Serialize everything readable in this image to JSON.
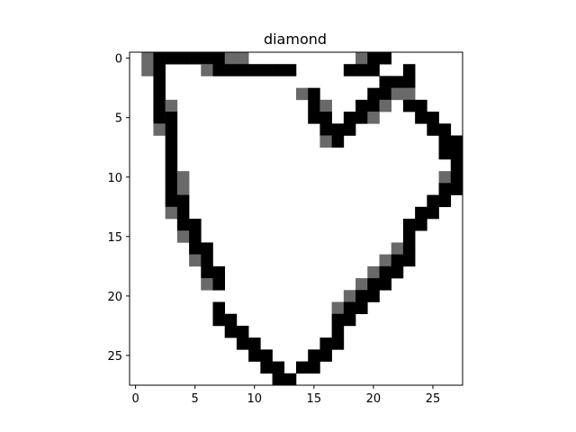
{
  "chart_data": {
    "type": "heatmap",
    "title": "diamond",
    "xlabel": "",
    "ylabel": "",
    "grid": false,
    "xlim": [
      -0.5,
      27.5
    ],
    "ylim": [
      27.5,
      -0.5
    ],
    "xticks": [
      0,
      5,
      10,
      15,
      20,
      25
    ],
    "yticks": [
      0,
      5,
      10,
      15,
      20,
      25
    ],
    "colormap": "gray_r",
    "value_scale": "0 = white, 128 = gray, 255 = black",
    "colors": {
      "empty": "#ffffff",
      "mid": "#696969",
      "full": "#000000",
      "axes": "#000000"
    },
    "pixels": [
      {
        "r": 0,
        "c": 1,
        "v": 128
      },
      {
        "r": 0,
        "c": 2,
        "v": 255
      },
      {
        "r": 0,
        "c": 3,
        "v": 255
      },
      {
        "r": 0,
        "c": 4,
        "v": 255
      },
      {
        "r": 0,
        "c": 5,
        "v": 255
      },
      {
        "r": 0,
        "c": 6,
        "v": 255
      },
      {
        "r": 0,
        "c": 7,
        "v": 255
      },
      {
        "r": 0,
        "c": 8,
        "v": 128
      },
      {
        "r": 0,
        "c": 9,
        "v": 128
      },
      {
        "r": 0,
        "c": 19,
        "v": 128
      },
      {
        "r": 0,
        "c": 20,
        "v": 255
      },
      {
        "r": 0,
        "c": 21,
        "v": 255
      },
      {
        "r": 1,
        "c": 1,
        "v": 128
      },
      {
        "r": 1,
        "c": 2,
        "v": 255
      },
      {
        "r": 1,
        "c": 6,
        "v": 128
      },
      {
        "r": 1,
        "c": 7,
        "v": 255
      },
      {
        "r": 1,
        "c": 8,
        "v": 255
      },
      {
        "r": 1,
        "c": 9,
        "v": 255
      },
      {
        "r": 1,
        "c": 10,
        "v": 255
      },
      {
        "r": 1,
        "c": 11,
        "v": 255
      },
      {
        "r": 1,
        "c": 12,
        "v": 255
      },
      {
        "r": 1,
        "c": 13,
        "v": 255
      },
      {
        "r": 1,
        "c": 18,
        "v": 255
      },
      {
        "r": 1,
        "c": 19,
        "v": 255
      },
      {
        "r": 1,
        "c": 20,
        "v": 255
      },
      {
        "r": 1,
        "c": 23,
        "v": 255
      },
      {
        "r": 2,
        "c": 2,
        "v": 255
      },
      {
        "r": 2,
        "c": 21,
        "v": 255
      },
      {
        "r": 2,
        "c": 22,
        "v": 255
      },
      {
        "r": 2,
        "c": 23,
        "v": 255
      },
      {
        "r": 3,
        "c": 2,
        "v": 255
      },
      {
        "r": 3,
        "c": 14,
        "v": 128
      },
      {
        "r": 3,
        "c": 15,
        "v": 255
      },
      {
        "r": 3,
        "c": 20,
        "v": 255
      },
      {
        "r": 3,
        "c": 21,
        "v": 255
      },
      {
        "r": 3,
        "c": 22,
        "v": 128
      },
      {
        "r": 3,
        "c": 23,
        "v": 128
      },
      {
        "r": 4,
        "c": 2,
        "v": 255
      },
      {
        "r": 4,
        "c": 3,
        "v": 128
      },
      {
        "r": 4,
        "c": 15,
        "v": 255
      },
      {
        "r": 4,
        "c": 16,
        "v": 128
      },
      {
        "r": 4,
        "c": 19,
        "v": 255
      },
      {
        "r": 4,
        "c": 20,
        "v": 255
      },
      {
        "r": 4,
        "c": 21,
        "v": 128
      },
      {
        "r": 4,
        "c": 23,
        "v": 255
      },
      {
        "r": 4,
        "c": 24,
        "v": 255
      },
      {
        "r": 5,
        "c": 2,
        "v": 255
      },
      {
        "r": 5,
        "c": 3,
        "v": 255
      },
      {
        "r": 5,
        "c": 15,
        "v": 255
      },
      {
        "r": 5,
        "c": 16,
        "v": 255
      },
      {
        "r": 5,
        "c": 18,
        "v": 255
      },
      {
        "r": 5,
        "c": 19,
        "v": 255
      },
      {
        "r": 5,
        "c": 20,
        "v": 128
      },
      {
        "r": 5,
        "c": 24,
        "v": 255
      },
      {
        "r": 5,
        "c": 25,
        "v": 255
      },
      {
        "r": 6,
        "c": 2,
        "v": 128
      },
      {
        "r": 6,
        "c": 3,
        "v": 255
      },
      {
        "r": 6,
        "c": 16,
        "v": 255
      },
      {
        "r": 6,
        "c": 17,
        "v": 255
      },
      {
        "r": 6,
        "c": 18,
        "v": 255
      },
      {
        "r": 6,
        "c": 25,
        "v": 255
      },
      {
        "r": 6,
        "c": 26,
        "v": 255
      },
      {
        "r": 7,
        "c": 3,
        "v": 255
      },
      {
        "r": 7,
        "c": 16,
        "v": 128
      },
      {
        "r": 7,
        "c": 17,
        "v": 255
      },
      {
        "r": 7,
        "c": 26,
        "v": 255
      },
      {
        "r": 7,
        "c": 27,
        "v": 255
      },
      {
        "r": 8,
        "c": 3,
        "v": 255
      },
      {
        "r": 8,
        "c": 26,
        "v": 255
      },
      {
        "r": 8,
        "c": 27,
        "v": 255
      },
      {
        "r": 9,
        "c": 3,
        "v": 255
      },
      {
        "r": 9,
        "c": 27,
        "v": 255
      },
      {
        "r": 10,
        "c": 3,
        "v": 255
      },
      {
        "r": 10,
        "c": 4,
        "v": 128
      },
      {
        "r": 10,
        "c": 26,
        "v": 128
      },
      {
        "r": 10,
        "c": 27,
        "v": 255
      },
      {
        "r": 11,
        "c": 3,
        "v": 255
      },
      {
        "r": 11,
        "c": 4,
        "v": 128
      },
      {
        "r": 11,
        "c": 26,
        "v": 255
      },
      {
        "r": 11,
        "c": 27,
        "v": 255
      },
      {
        "r": 12,
        "c": 3,
        "v": 255
      },
      {
        "r": 12,
        "c": 4,
        "v": 255
      },
      {
        "r": 12,
        "c": 25,
        "v": 255
      },
      {
        "r": 12,
        "c": 26,
        "v": 255
      },
      {
        "r": 13,
        "c": 3,
        "v": 128
      },
      {
        "r": 13,
        "c": 4,
        "v": 255
      },
      {
        "r": 13,
        "c": 24,
        "v": 255
      },
      {
        "r": 13,
        "c": 25,
        "v": 255
      },
      {
        "r": 14,
        "c": 4,
        "v": 255
      },
      {
        "r": 14,
        "c": 5,
        "v": 255
      },
      {
        "r": 14,
        "c": 23,
        "v": 255
      },
      {
        "r": 14,
        "c": 24,
        "v": 255
      },
      {
        "r": 15,
        "c": 4,
        "v": 128
      },
      {
        "r": 15,
        "c": 5,
        "v": 255
      },
      {
        "r": 15,
        "c": 23,
        "v": 255
      },
      {
        "r": 16,
        "c": 5,
        "v": 255
      },
      {
        "r": 16,
        "c": 6,
        "v": 255
      },
      {
        "r": 16,
        "c": 22,
        "v": 128
      },
      {
        "r": 16,
        "c": 23,
        "v": 255
      },
      {
        "r": 17,
        "c": 5,
        "v": 128
      },
      {
        "r": 17,
        "c": 6,
        "v": 255
      },
      {
        "r": 17,
        "c": 21,
        "v": 128
      },
      {
        "r": 17,
        "c": 22,
        "v": 255
      },
      {
        "r": 17,
        "c": 23,
        "v": 255
      },
      {
        "r": 18,
        "c": 6,
        "v": 255
      },
      {
        "r": 18,
        "c": 7,
        "v": 255
      },
      {
        "r": 18,
        "c": 20,
        "v": 128
      },
      {
        "r": 18,
        "c": 21,
        "v": 255
      },
      {
        "r": 18,
        "c": 22,
        "v": 255
      },
      {
        "r": 19,
        "c": 6,
        "v": 128
      },
      {
        "r": 19,
        "c": 7,
        "v": 255
      },
      {
        "r": 19,
        "c": 19,
        "v": 128
      },
      {
        "r": 19,
        "c": 20,
        "v": 255
      },
      {
        "r": 19,
        "c": 21,
        "v": 255
      },
      {
        "r": 20,
        "c": 18,
        "v": 128
      },
      {
        "r": 20,
        "c": 19,
        "v": 255
      },
      {
        "r": 20,
        "c": 20,
        "v": 255
      },
      {
        "r": 21,
        "c": 7,
        "v": 255
      },
      {
        "r": 21,
        "c": 17,
        "v": 128
      },
      {
        "r": 21,
        "c": 18,
        "v": 255
      },
      {
        "r": 21,
        "c": 19,
        "v": 255
      },
      {
        "r": 22,
        "c": 7,
        "v": 255
      },
      {
        "r": 22,
        "c": 8,
        "v": 255
      },
      {
        "r": 22,
        "c": 17,
        "v": 255
      },
      {
        "r": 22,
        "c": 18,
        "v": 255
      },
      {
        "r": 23,
        "c": 8,
        "v": 255
      },
      {
        "r": 23,
        "c": 9,
        "v": 255
      },
      {
        "r": 23,
        "c": 17,
        "v": 255
      },
      {
        "r": 24,
        "c": 9,
        "v": 255
      },
      {
        "r": 24,
        "c": 10,
        "v": 255
      },
      {
        "r": 24,
        "c": 16,
        "v": 255
      },
      {
        "r": 24,
        "c": 17,
        "v": 255
      },
      {
        "r": 25,
        "c": 10,
        "v": 255
      },
      {
        "r": 25,
        "c": 11,
        "v": 255
      },
      {
        "r": 25,
        "c": 15,
        "v": 255
      },
      {
        "r": 25,
        "c": 16,
        "v": 255
      },
      {
        "r": 26,
        "c": 11,
        "v": 255
      },
      {
        "r": 26,
        "c": 12,
        "v": 255
      },
      {
        "r": 26,
        "c": 14,
        "v": 255
      },
      {
        "r": 26,
        "c": 15,
        "v": 255
      },
      {
        "r": 27,
        "c": 12,
        "v": 255
      },
      {
        "r": 27,
        "c": 13,
        "v": 255
      }
    ]
  }
}
